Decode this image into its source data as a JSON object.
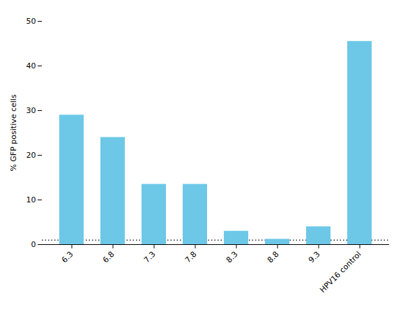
{
  "chart_data": {
    "type": "bar",
    "categories": [
      "6.3",
      "6.8",
      "7.3",
      "7.8",
      "8.3",
      "8.8",
      "9.3",
      "HPV16 control"
    ],
    "values": [
      29.0,
      24.0,
      13.5,
      13.5,
      3.0,
      1.2,
      4.0,
      45.5
    ],
    "color": "#6DC8E8",
    "ylabel": "% GFP positive cells",
    "ylim": [
      0,
      50
    ],
    "yticks": [
      0,
      10,
      20,
      30,
      40,
      50
    ],
    "reference_line": 1.0,
    "grid": false
  }
}
